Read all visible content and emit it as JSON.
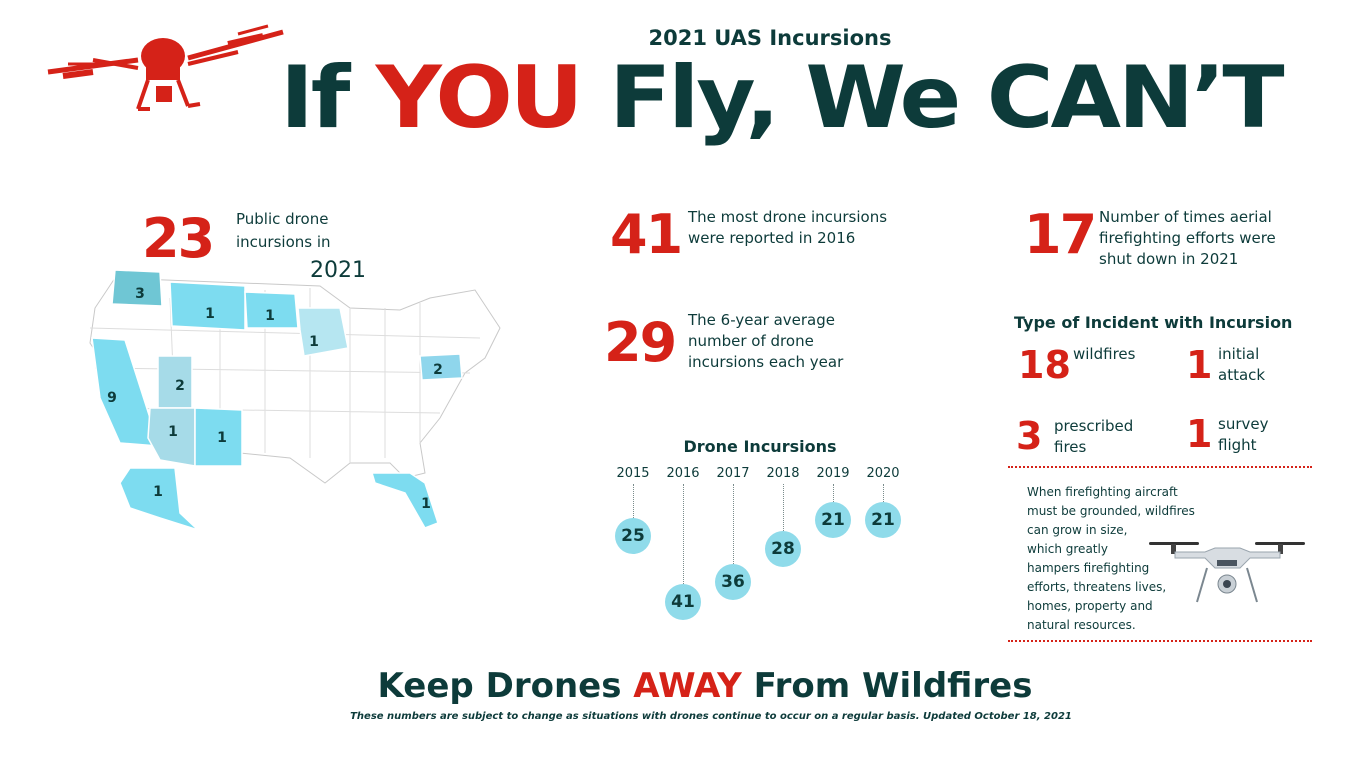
{
  "header": {
    "eyebrow": "2021 UAS Incursions",
    "title_part1": "If ",
    "title_you": "YOU",
    "title_part2": " Fly, We CAN’T"
  },
  "map_stat": {
    "number": "23",
    "text_line1": "Public drone",
    "text_line2": "incursions in",
    "year": "2021"
  },
  "states": [
    {
      "state": "WA",
      "count": "3",
      "color": "#6fc6d4"
    },
    {
      "state": "MT",
      "count": "1",
      "color": "#7ddcf0"
    },
    {
      "state": "ND",
      "count": "1",
      "color": "#7ddcf0"
    },
    {
      "state": "MN",
      "count": "1",
      "color": "#b6e6f1"
    },
    {
      "state": "PA",
      "count": "2",
      "color": "#8fd6ec"
    },
    {
      "state": "CA",
      "count": "9",
      "color": "#7ddcf0"
    },
    {
      "state": "UT",
      "count": "2",
      "color": "#a6dbe8"
    },
    {
      "state": "AZ",
      "count": "1",
      "color": "#a6dbe8"
    },
    {
      "state": "NM",
      "count": "1",
      "color": "#7ddcf0"
    },
    {
      "state": "AK",
      "count": "1",
      "color": "#7ddcf0"
    },
    {
      "state": "FL",
      "count": "1",
      "color": "#7ddcf0"
    }
  ],
  "stats": {
    "most": {
      "number": "41",
      "line1": "The most drone incursions",
      "line2": "were reported in 2016"
    },
    "average": {
      "number": "29",
      "line1": "The 6-year average",
      "line2": "number of drone",
      "line3": "incursions each year"
    },
    "shutdown": {
      "number": "17",
      "line1": "Number of times aerial",
      "line2": "firefighting efforts were",
      "line3": "shut down in 2021"
    }
  },
  "incident_types": {
    "heading": "Type of Incident with Incursion",
    "items": [
      {
        "number": "18",
        "line1": "wildfires",
        "line2": ""
      },
      {
        "number": "1",
        "line1": "initial",
        "line2": "attack"
      },
      {
        "number": "3",
        "line1": "prescribed",
        "line2": "fires"
      },
      {
        "number": "1",
        "line1": "survey",
        "line2": "flight"
      }
    ]
  },
  "description": [
    "When firefighting aircraft",
    "must be grounded, wildfires",
    "can grow in size,",
    "which greatly",
    "hampers firefighting",
    "efforts, threatens lives,",
    "homes, property and",
    "natural resources."
  ],
  "chart_data": {
    "type": "scatter",
    "title": "Drone Incursions",
    "categories": [
      "2015",
      "2016",
      "2017",
      "2018",
      "2019",
      "2020"
    ],
    "values": [
      25,
      41,
      36,
      28,
      21,
      21
    ],
    "ylim": [
      21,
      41
    ],
    "xlabel": "",
    "ylabel": ""
  },
  "footer": {
    "part1": "Keep Drones ",
    "away": "AWAY",
    "part2": " From Wildfires",
    "note": "These numbers are subject to change as situations with drones continue to occur on a regular basis. Updated October 18, 2021"
  },
  "colors": {
    "accent_red": "#d52218",
    "dark_teal": "#0d3b3a",
    "bubble_blue": "#8fdbea"
  }
}
